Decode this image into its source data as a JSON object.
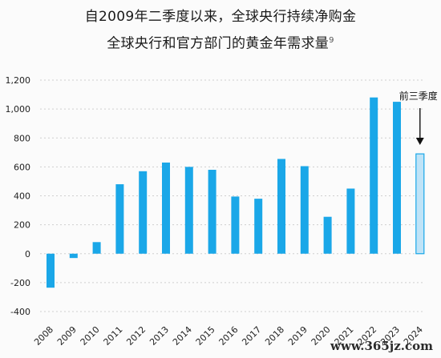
{
  "chart_data": {
    "type": "bar",
    "title_line1": "自2009年二季度以来，全球央行持续净购金",
    "title_line2": "全球央行和官方部门的黄金年需求量",
    "title_sup": "9",
    "categories": [
      "2008",
      "2009",
      "2010",
      "2011",
      "2012",
      "2013",
      "2014",
      "2015",
      "2016",
      "2017",
      "2018",
      "2019",
      "2020",
      "2021",
      "2022",
      "2023",
      "2024"
    ],
    "values": [
      -235,
      -30,
      80,
      480,
      570,
      630,
      600,
      580,
      395,
      380,
      655,
      605,
      255,
      450,
      1080,
      1050,
      690
    ],
    "highlight_index": 16,
    "annotation": "前三季度",
    "ylim": [
      -400,
      1200
    ],
    "yticks": [
      -400,
      -200,
      0,
      200,
      400,
      600,
      800,
      1000,
      1200
    ],
    "ytick_labels": [
      "-400",
      "-200",
      "0",
      "200",
      "400",
      "600",
      "800",
      "1,000",
      "1,200"
    ],
    "grid": "horizontal-dashed",
    "colors": {
      "bar": "#1aa7e8",
      "highlight_fill": "#bfe3f7",
      "highlight_stroke": "#1aa7e8"
    }
  },
  "watermark": "www.365jz.com"
}
